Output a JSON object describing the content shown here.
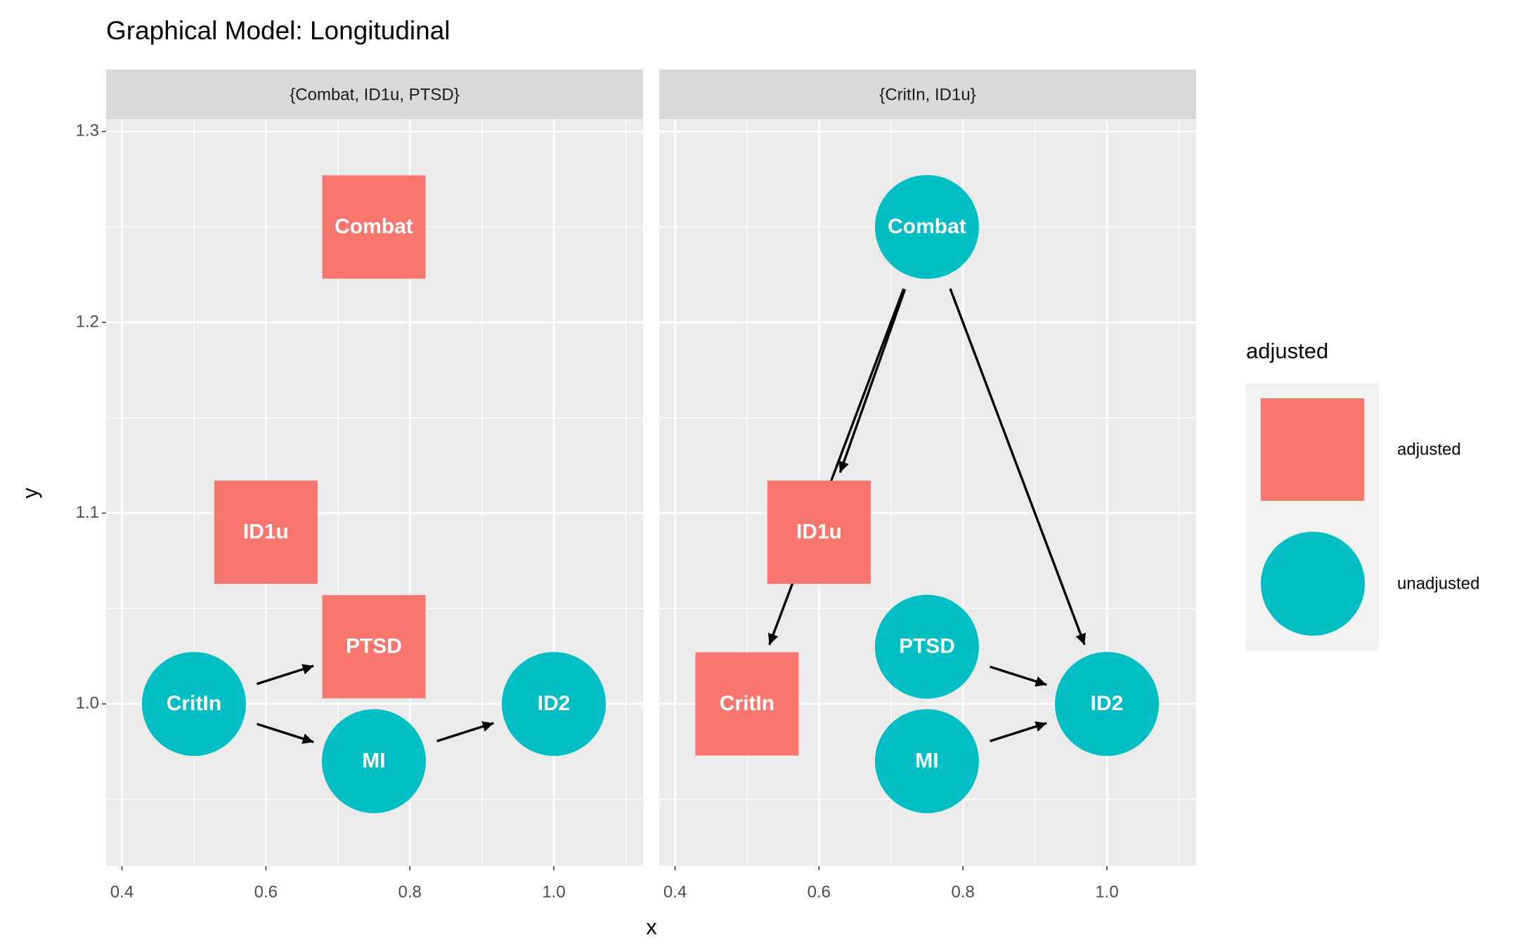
{
  "chart_data": {
    "type": "dag",
    "title": "Graphical Model: Longitudinal",
    "xlabel": "x",
    "ylabel": "y",
    "xlim": [
      0.378,
      1.124
    ],
    "ylim": [
      0.915,
      1.306
    ],
    "xticks": [
      0.4,
      0.6,
      0.8,
      {
        "value": 1,
        "label": "1.0"
      }
    ],
    "yticks": [
      {
        "value": 1,
        "label": "1.0"
      },
      1.1,
      1.2,
      1.3
    ],
    "grid": true,
    "legend": {
      "title": "adjusted",
      "position": "right",
      "entries": [
        {
          "label": "adjusted",
          "shape": "square",
          "color": "#F8766D"
        },
        {
          "label": "unadjusted",
          "shape": "circle",
          "color": "#00BFC4"
        }
      ]
    },
    "facets": [
      {
        "label": "{Combat, ID1u, PTSD}",
        "nodes": [
          {
            "name": "Combat",
            "x": 0.75,
            "y": 1.25,
            "status": "adjusted"
          },
          {
            "name": "ID1u",
            "x": 0.6,
            "y": 1.09,
            "status": "adjusted"
          },
          {
            "name": "PTSD",
            "x": 0.75,
            "y": 1.03,
            "status": "adjusted"
          },
          {
            "name": "CritIn",
            "x": 0.5,
            "y": 1.0,
            "status": "unadjusted"
          },
          {
            "name": "MI",
            "x": 0.75,
            "y": 0.97,
            "status": "unadjusted"
          },
          {
            "name": "ID2",
            "x": 1.0,
            "y": 1.0,
            "status": "unadjusted"
          }
        ],
        "edges": [
          {
            "from": "CritIn",
            "to": "PTSD"
          },
          {
            "from": "CritIn",
            "to": "MI"
          },
          {
            "from": "MI",
            "to": "ID2"
          }
        ]
      },
      {
        "label": "{CritIn, ID1u}",
        "nodes": [
          {
            "name": "Combat",
            "x": 0.75,
            "y": 1.25,
            "status": "unadjusted"
          },
          {
            "name": "ID1u",
            "x": 0.6,
            "y": 1.09,
            "status": "adjusted"
          },
          {
            "name": "PTSD",
            "x": 0.75,
            "y": 1.03,
            "status": "unadjusted"
          },
          {
            "name": "CritIn",
            "x": 0.5,
            "y": 1.0,
            "status": "adjusted"
          },
          {
            "name": "MI",
            "x": 0.75,
            "y": 0.97,
            "status": "unadjusted"
          },
          {
            "name": "ID2",
            "x": 1.0,
            "y": 1.0,
            "status": "unadjusted"
          }
        ],
        "edges": [
          {
            "from": "Combat",
            "to": "CritIn"
          },
          {
            "from": "Combat",
            "to": "ID1u"
          },
          {
            "from": "Combat",
            "to": "ID2"
          },
          {
            "from": "PTSD",
            "to": "ID2"
          },
          {
            "from": "MI",
            "to": "ID2"
          }
        ]
      }
    ]
  }
}
